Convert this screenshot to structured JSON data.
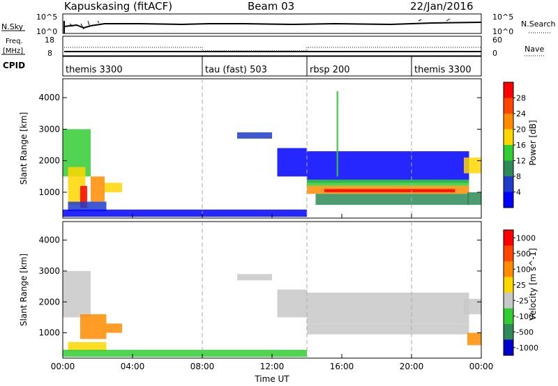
{
  "header": {
    "station": "Kapuskasing (fitACF)",
    "beam": "Beam 03",
    "date": "22/Jan/2016"
  },
  "noise_panel": {
    "left_label": "N.Sky",
    "right_label": "N.Search",
    "left_ticks": [
      "10^5",
      "10^0"
    ],
    "right_ticks": [
      "10^5",
      "10^0"
    ]
  },
  "freq_panel": {
    "left_label_1": "Freq.",
    "left_label_2": "[MHz]",
    "right_label": "Nave",
    "left_ticks": [
      "18",
      "8"
    ],
    "right_ticks": [
      "60",
      "0"
    ]
  },
  "cpid": {
    "label": "CPID",
    "segments": [
      {
        "name": "themis 3300",
        "start_h": 0
      },
      {
        "name": "tau (fast) 503",
        "start_h": 8
      },
      {
        "name": "rbsp 200",
        "start_h": 14
      },
      {
        "name": "themis 3300",
        "start_h": 20
      }
    ]
  },
  "x_axis": {
    "label": "Time UT",
    "ticks": [
      "00:00",
      "04:00",
      "08:00",
      "12:00",
      "16:00",
      "20:00",
      "00:00"
    ]
  },
  "chart_data": [
    {
      "type": "heatmap",
      "title": "",
      "xlabel": "Time UT",
      "ylabel": "Slant Range [km]",
      "xlim": [
        0,
        24
      ],
      "ylim": [
        180,
        4600
      ],
      "yticks": [
        1000,
        2000,
        3000,
        4000
      ],
      "colorbar": {
        "label": "Power [dB]",
        "ticks": [
          "4",
          "8",
          "12",
          "16",
          "20",
          "24",
          "28"
        ],
        "colors": [
          "#0000ff",
          "#1e3cc8",
          "#2e8b57",
          "#32cd32",
          "#ffd700",
          "#ff8c00",
          "#ff4500",
          "#ff0000"
        ]
      },
      "regions": [
        {
          "t0": 0.0,
          "t1": 1.6,
          "r0": 1500,
          "r1": 3000,
          "level": 3
        },
        {
          "t0": 0.3,
          "t1": 1.3,
          "r0": 600,
          "r1": 1800,
          "level": 4
        },
        {
          "t0": 1.0,
          "t1": 1.4,
          "r0": 500,
          "r1": 1200,
          "level": 7
        },
        {
          "t0": 1.6,
          "t1": 2.4,
          "r0": 700,
          "r1": 1500,
          "level": 5
        },
        {
          "t0": 2.4,
          "t1": 3.4,
          "r0": 1000,
          "r1": 1300,
          "level": 4
        },
        {
          "t0": 0.3,
          "t1": 2.5,
          "r0": 400,
          "r1": 700,
          "level": 1
        },
        {
          "t0": 0.0,
          "t1": 14.0,
          "r0": 220,
          "r1": 450,
          "level": 0
        },
        {
          "t0": 10.0,
          "t1": 12.0,
          "r0": 2700,
          "r1": 2900,
          "level": 1
        },
        {
          "t0": 12.3,
          "t1": 14.0,
          "r0": 1500,
          "r1": 2400,
          "level": 0
        },
        {
          "t0": 14.0,
          "t1": 23.3,
          "r0": 1300,
          "r1": 2300,
          "level": 0
        },
        {
          "t0": 14.0,
          "t1": 23.3,
          "r0": 1200,
          "r1": 1400,
          "level": 3
        },
        {
          "t0": 14.0,
          "t1": 23.3,
          "r0": 950,
          "r1": 1200,
          "level": 5
        },
        {
          "t0": 15.0,
          "t1": 22.5,
          "r0": 1000,
          "r1": 1100,
          "level": 7
        },
        {
          "t0": 14.5,
          "t1": 23.3,
          "r0": 600,
          "r1": 950,
          "level": 2
        },
        {
          "t0": 23.0,
          "t1": 24.0,
          "r0": 1600,
          "r1": 2100,
          "level": 4
        },
        {
          "t0": 23.2,
          "t1": 24.0,
          "r0": 600,
          "r1": 1000,
          "level": 2
        },
        {
          "t0": 15.7,
          "t1": 15.8,
          "r0": 1500,
          "r1": 4200,
          "level": 3
        }
      ]
    },
    {
      "type": "heatmap",
      "title": "",
      "xlabel": "Time UT",
      "ylabel": "Slant Range [km]",
      "xlim": [
        0,
        24
      ],
      "ylim": [
        180,
        4600
      ],
      "yticks": [
        1000,
        2000,
        3000,
        4000
      ],
      "colorbar": {
        "label": "Velocity [m s^-1]",
        "ticks": [
          "1000",
          "500",
          "100",
          "25",
          "-25",
          "-100",
          "-500",
          "-1000"
        ],
        "colors": [
          "#0000cd",
          "#2e8b57",
          "#32cd32",
          "#c8c8c8",
          "#ffd700",
          "#ff8c00",
          "#ff4500",
          "#ff0000"
        ]
      },
      "regions": [
        {
          "t0": 0.0,
          "t1": 1.6,
          "r0": 1500,
          "r1": 3000,
          "level": 3
        },
        {
          "t0": 1.0,
          "t1": 2.5,
          "r0": 800,
          "r1": 1600,
          "level": 5
        },
        {
          "t0": 2.5,
          "t1": 3.4,
          "r0": 1000,
          "r1": 1300,
          "level": 5
        },
        {
          "t0": 0.3,
          "t1": 2.5,
          "r0": 400,
          "r1": 700,
          "level": 4
        },
        {
          "t0": 0.0,
          "t1": 14.0,
          "r0": 220,
          "r1": 450,
          "level": 2
        },
        {
          "t0": 10.0,
          "t1": 12.0,
          "r0": 2700,
          "r1": 2900,
          "level": 3
        },
        {
          "t0": 12.3,
          "t1": 14.0,
          "r0": 1500,
          "r1": 2400,
          "level": 3
        },
        {
          "t0": 14.0,
          "t1": 23.3,
          "r0": 1300,
          "r1": 2300,
          "level": 3
        },
        {
          "t0": 14.0,
          "t1": 23.3,
          "r0": 950,
          "r1": 1300,
          "level": 3
        },
        {
          "t0": 23.0,
          "t1": 24.0,
          "r0": 1600,
          "r1": 2100,
          "level": 3
        },
        {
          "t0": 23.2,
          "t1": 24.0,
          "r0": 600,
          "r1": 1000,
          "level": 5
        }
      ]
    }
  ]
}
